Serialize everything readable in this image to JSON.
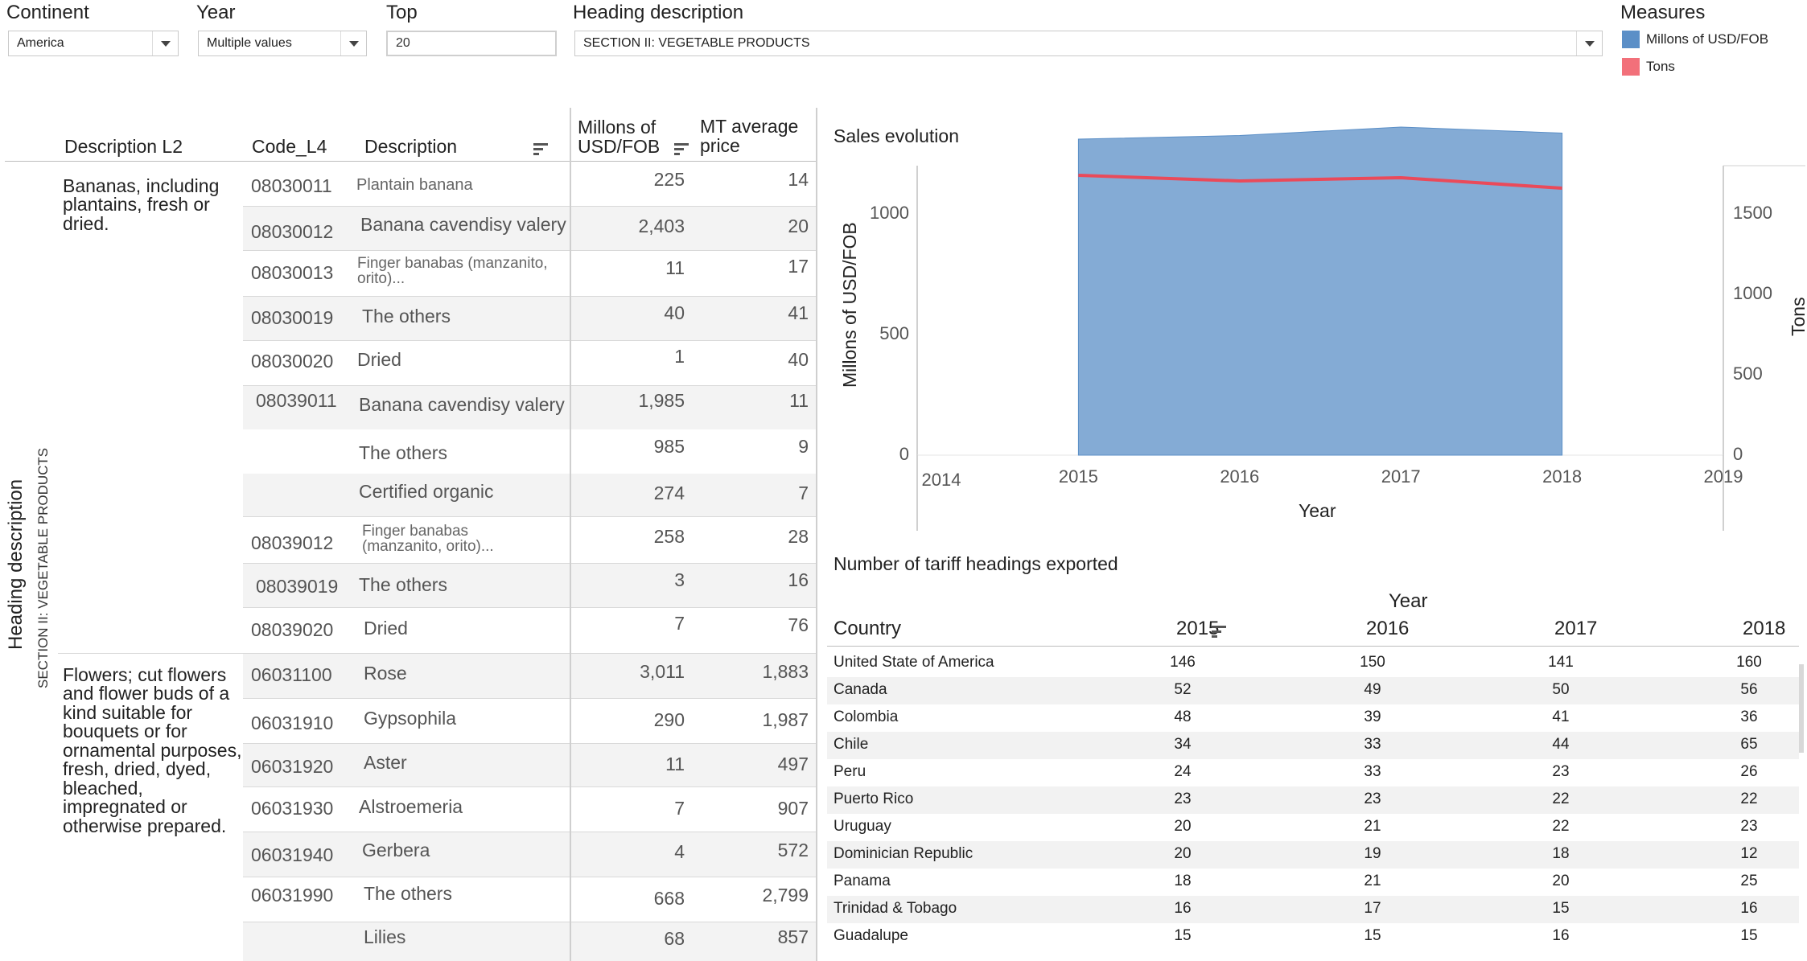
{
  "filters": {
    "continent": {
      "label": "Continent",
      "value": "America"
    },
    "year": {
      "label": "Year",
      "value": "Multiple values"
    },
    "top": {
      "label": "Top",
      "value": "20"
    },
    "heading": {
      "label": "Heading description",
      "value": "SECTION II: VEGETABLE PRODUCTS"
    }
  },
  "measures": {
    "title": "Measures",
    "items": [
      {
        "label": "Millons of USD/FOB",
        "color": "#5b8fc7"
      },
      {
        "label": "Tons",
        "color": "#f2707a"
      }
    ]
  },
  "main_table": {
    "row_axis_title": "Heading description",
    "row_axis_value": "SECTION II: VEGETABLE PRODUCTS",
    "headers": {
      "description_l2": "Description L2",
      "code": "Code_L4",
      "description": "Description",
      "value": "Millons of USD/FOB",
      "price": "MT average price"
    },
    "groups": [
      {
        "description_l2": "Bananas, including plantains, fresh or dried.",
        "rows": [
          {
            "code": "08030011",
            "description": "Plantain banana",
            "value": "225",
            "price": "14"
          },
          {
            "code": "08030012",
            "description": "Banana cavendisy valery",
            "value": "2,403",
            "price": "20"
          },
          {
            "code": "08030013",
            "description": "Finger banabas (manzanito, orito)...",
            "value": "11",
            "price": "17"
          },
          {
            "code": "08030019",
            "description": "The others",
            "value": "40",
            "price": "41"
          },
          {
            "code": "08030020",
            "description": "Dried",
            "value": "1",
            "price": "40"
          },
          {
            "code": "08039011",
            "description": "Banana cavendisy valery",
            "value": "1,985",
            "price": "11"
          },
          {
            "code": "",
            "description": "The others",
            "value": "985",
            "price": "9"
          },
          {
            "code": "",
            "description": "Certified organic",
            "value": "274",
            "price": "7"
          },
          {
            "code": "08039012",
            "description": "Finger banabas (manzanito, orito)...",
            "value": "258",
            "price": "28"
          },
          {
            "code": "08039019",
            "description": "The others",
            "value": "3",
            "price": "16"
          },
          {
            "code": "08039020",
            "description": "Dried",
            "value": "7",
            "price": "76"
          }
        ]
      },
      {
        "description_l2": "Flowers; cut flowers and flower buds of a kind suitable for bouquets or for ornamental purposes, fresh, dried, dyed, bleached, impregnated or otherwise prepared.",
        "rows": [
          {
            "code": "06031100",
            "description": "Rose",
            "value": "3,011",
            "price": "1,883"
          },
          {
            "code": "06031910",
            "description": "Gypsophila",
            "value": "290",
            "price": "1,987"
          },
          {
            "code": "06031920",
            "description": "Aster",
            "value": "11",
            "price": "497"
          },
          {
            "code": "06031930",
            "description": "Alstroemeria",
            "value": "7",
            "price": "907"
          },
          {
            "code": "06031940",
            "description": "Gerbera",
            "value": "4",
            "price": "572"
          },
          {
            "code": "06031990",
            "description": "The others",
            "value": "668",
            "price": "2,799"
          },
          {
            "code": "",
            "description": "Lilies",
            "value": "68",
            "price": "857"
          }
        ]
      }
    ]
  },
  "chart_data": {
    "type": "area",
    "title": "Sales evolution",
    "xlabel": "Year",
    "ylabel": "Millons of USD/FOB",
    "y2label": "Tons",
    "x_ticks": [
      "2014",
      "2015",
      "2016",
      "2017",
      "2018",
      "2019"
    ],
    "y_ticks": [
      "0",
      "500",
      "1000"
    ],
    "y2_ticks": [
      "0",
      "500",
      "1000",
      "1500"
    ],
    "xlim": [
      2014,
      2019
    ],
    "ylim": [
      0,
      1200
    ],
    "y2lim": [
      0,
      1800
    ],
    "series": [
      {
        "name": "Millons of USD/FOB",
        "x": [
          2015,
          2016,
          2017,
          2018
        ],
        "values": [
          1310,
          1325,
          1360,
          1335
        ],
        "color": "#5b8fc7",
        "axis": "left"
      },
      {
        "name": "Tons",
        "x": [
          2015,
          2016,
          2017,
          2018
        ],
        "values": [
          1740,
          1705,
          1725,
          1660
        ],
        "color": "#ea4a5a",
        "axis": "right"
      }
    ]
  },
  "tariff_table": {
    "title": "Number of tariff headings exported",
    "year_header": "Year",
    "country_header": "Country",
    "years": [
      "2015",
      "2016",
      "2017",
      "2018"
    ],
    "rows": [
      {
        "country": "United State of America",
        "values": [
          "146",
          "150",
          "141",
          "160"
        ]
      },
      {
        "country": "Canada",
        "values": [
          "52",
          "49",
          "50",
          "56"
        ]
      },
      {
        "country": "Colombia",
        "values": [
          "48",
          "39",
          "41",
          "36"
        ]
      },
      {
        "country": "Chile",
        "values": [
          "34",
          "33",
          "44",
          "65"
        ]
      },
      {
        "country": "Peru",
        "values": [
          "24",
          "33",
          "23",
          "26"
        ]
      },
      {
        "country": "Puerto Rico",
        "values": [
          "23",
          "23",
          "22",
          "22"
        ]
      },
      {
        "country": "Uruguay",
        "values": [
          "20",
          "21",
          "22",
          "23"
        ]
      },
      {
        "country": "Dominician Republic",
        "values": [
          "20",
          "19",
          "18",
          "12"
        ]
      },
      {
        "country": "Panama",
        "values": [
          "18",
          "21",
          "20",
          "25"
        ]
      },
      {
        "country": "Trinidad & Tobago",
        "values": [
          "16",
          "17",
          "15",
          "16"
        ]
      },
      {
        "country": "Guadalupe",
        "values": [
          "15",
          "15",
          "16",
          "15"
        ]
      }
    ]
  }
}
